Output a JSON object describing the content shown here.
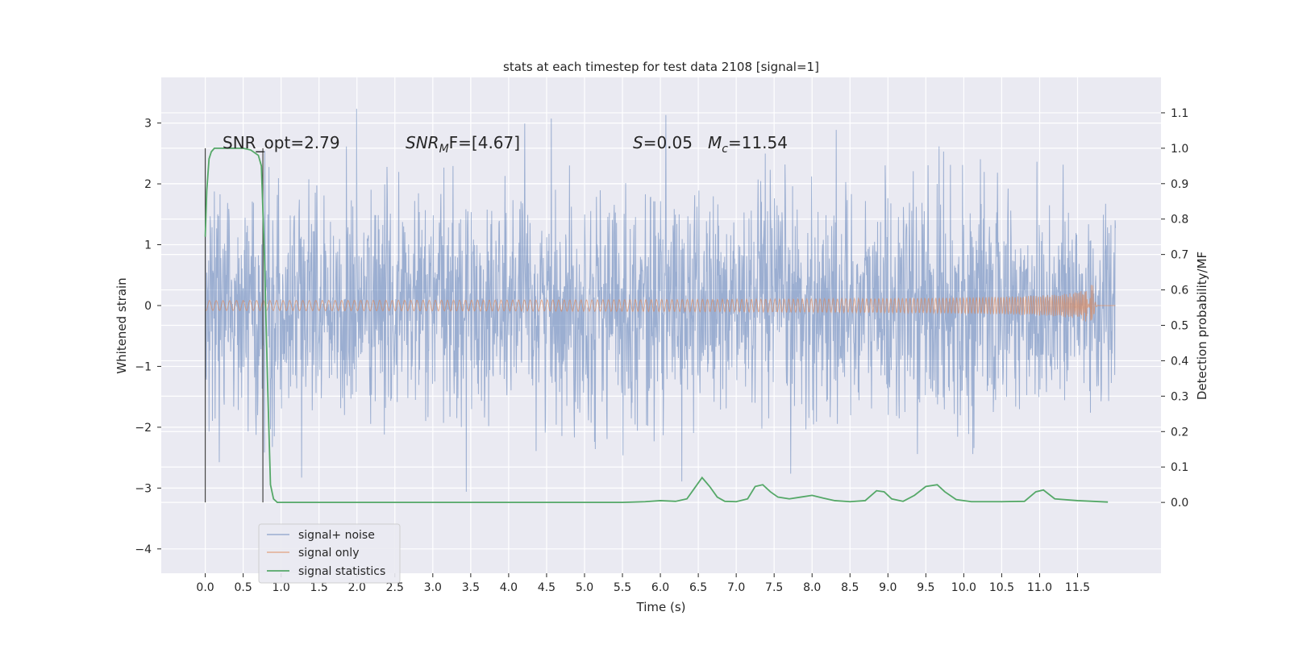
{
  "chart_data": {
    "type": "line",
    "title": "stats at each timestep for test data 2108 [signal=1]",
    "xlabel": "Time (s)",
    "ylabel": "Whitened strain",
    "ylabel_right": "Detection probability/MF",
    "xlim": [
      -0.58,
      12.6
    ],
    "ylim": [
      -4.4,
      3.75
    ],
    "ylim_right": [
      -0.2,
      1.2
    ],
    "x_ticks": [
      "0.0",
      "0.5",
      "1.0",
      "1.5",
      "2.0",
      "2.5",
      "3.0",
      "3.5",
      "4.0",
      "4.5",
      "5.0",
      "5.5",
      "6.0",
      "6.5",
      "7.0",
      "7.5",
      "8.0",
      "8.5",
      "9.0",
      "9.5",
      "10.0",
      "10.5",
      "11.0",
      "11.5"
    ],
    "y_ticks_left": [
      "3",
      "2",
      "1",
      "0",
      "−1",
      "−2",
      "−3",
      "−4"
    ],
    "y_ticks_left_values": [
      3,
      2,
      1,
      0,
      -1,
      -2,
      -3,
      -4
    ],
    "y_ticks_right": [
      "1.1",
      "1.0",
      "0.9",
      "0.8",
      "0.7",
      "0.6",
      "0.5",
      "0.4",
      "0.3",
      "0.2",
      "0.1",
      "0.0"
    ],
    "y_ticks_right_values": [
      1.1,
      1.0,
      0.9,
      0.8,
      0.7,
      0.6,
      0.5,
      0.4,
      0.3,
      0.2,
      0.1,
      0.0
    ],
    "grid": true,
    "legend_position": "lower-left",
    "annotations": [
      {
        "text": "SNR_opt=2.79"
      },
      {
        "base": "SNR",
        "sub": "M",
        "rest": "F=[4.67]"
      },
      {
        "base": "S",
        "rest": "=0.05"
      },
      {
        "base": "M",
        "sub": "c",
        "rest": "=11.54"
      }
    ],
    "vertical_lines_x": [
      0.0,
      0.76
    ],
    "series": [
      {
        "name": "signal+ noise",
        "color": "#4c72b0",
        "axis": "left",
        "duration": 12.0,
        "amplitude_std": 0.92
      },
      {
        "name": "signal only",
        "color": "#dd8452",
        "axis": "left",
        "merger_time": 11.7,
        "peak_amplitude": 0.45
      },
      {
        "name": "signal statistics",
        "color": "#55a868",
        "axis": "right",
        "x": [
          0.0,
          0.02,
          0.05,
          0.08,
          0.12,
          0.2,
          0.3,
          0.4,
          0.5,
          0.6,
          0.7,
          0.74,
          0.78,
          0.82,
          0.86,
          0.9,
          0.95,
          1.0,
          1.5,
          2.0,
          2.5,
          3.0,
          3.5,
          4.0,
          4.5,
          5.0,
          5.5,
          5.8,
          6.0,
          6.2,
          6.35,
          6.45,
          6.55,
          6.65,
          6.75,
          6.85,
          7.0,
          7.15,
          7.25,
          7.35,
          7.45,
          7.55,
          7.7,
          7.85,
          8.0,
          8.15,
          8.3,
          8.5,
          8.7,
          8.85,
          8.95,
          9.05,
          9.2,
          9.35,
          9.5,
          9.65,
          9.75,
          9.9,
          10.1,
          10.5,
          10.8,
          10.95,
          11.05,
          11.2,
          11.5,
          11.9
        ],
        "y": [
          0.75,
          0.88,
          0.97,
          0.99,
          1.0,
          1.0,
          1.0,
          1.0,
          1.0,
          0.995,
          0.98,
          0.95,
          0.7,
          0.35,
          0.05,
          0.01,
          0.0,
          0.0,
          0.0,
          0.0,
          0.0,
          0.0,
          0.0,
          0.0,
          0.0,
          0.0,
          0.0,
          0.002,
          0.005,
          0.003,
          0.01,
          0.04,
          0.07,
          0.045,
          0.015,
          0.003,
          0.002,
          0.01,
          0.045,
          0.05,
          0.03,
          0.015,
          0.01,
          0.015,
          0.02,
          0.012,
          0.005,
          0.002,
          0.005,
          0.033,
          0.03,
          0.01,
          0.003,
          0.02,
          0.045,
          0.05,
          0.03,
          0.008,
          0.002,
          0.002,
          0.003,
          0.03,
          0.035,
          0.01,
          0.005,
          0.001
        ]
      }
    ]
  }
}
